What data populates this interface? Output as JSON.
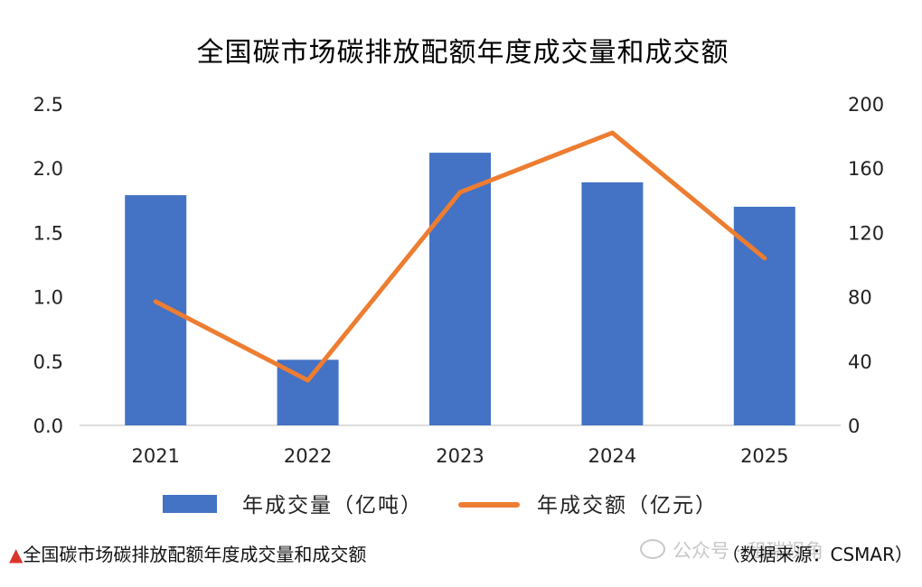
{
  "chart_data": {
    "type": "bar+line",
    "title": "全国碳市场碳排放配额年度成交量和成交额",
    "categories": [
      "2021",
      "2022",
      "2023",
      "2024",
      "2025"
    ],
    "series": [
      {
        "name": "年成交量（亿吨）",
        "type": "bar",
        "axis": "left",
        "color": "#4472C4",
        "values": [
          1.79,
          0.51,
          2.12,
          1.89,
          1.7
        ]
      },
      {
        "name": "年成交额（亿元）",
        "type": "line",
        "axis": "right",
        "color": "#ED7D31",
        "values": [
          77,
          28,
          145,
          182,
          104
        ]
      }
    ],
    "y_left": {
      "min": 0,
      "max": 2.5,
      "ticks": [
        "0.0",
        "0.5",
        "1.0",
        "1.5",
        "2.0",
        "2.5"
      ]
    },
    "y_right": {
      "min": 0,
      "max": 200,
      "ticks": [
        "0",
        "40",
        "80",
        "120",
        "160",
        "200"
      ]
    },
    "grid": false,
    "legend_position": "bottom"
  },
  "footer": {
    "triangle": "▲",
    "caption": "全国碳市场碳排放配额年度成交量和成交额",
    "source": "（数据来源：CSMAR）"
  },
  "watermark": {
    "icon": "wechat-icon",
    "text": "公众号 · 租瑞视角"
  }
}
